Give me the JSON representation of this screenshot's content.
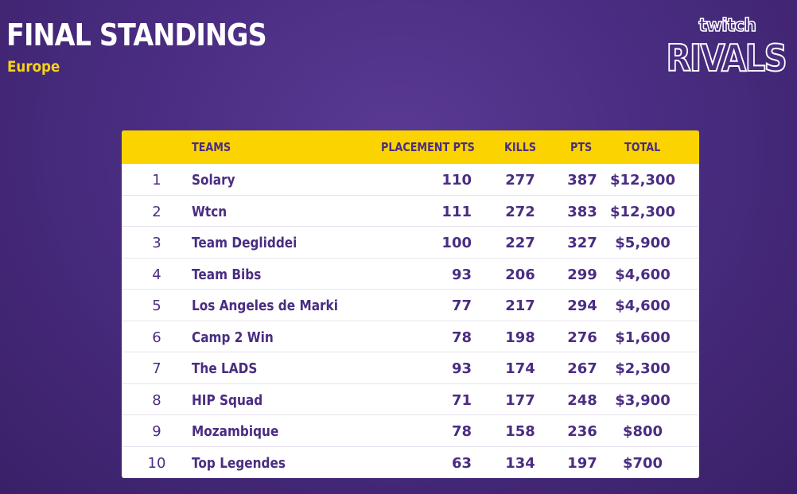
{
  "header": {
    "title": "FINAL STANDINGS",
    "subtitle": "Europe"
  },
  "logo": {
    "top": "twitch",
    "bottom": "RIVALS"
  },
  "table": {
    "columns": [
      "",
      "TEAMS",
      "PLACEMENT PTS",
      "KILLS",
      "PTS",
      "TOTAL"
    ],
    "rows": [
      {
        "rank": "1",
        "team": "Solary",
        "placement": "110",
        "kills": "277",
        "pts": "387",
        "total": "$12,300"
      },
      {
        "rank": "2",
        "team": "Wtcn",
        "placement": "111",
        "kills": "272",
        "pts": "383",
        "total": "$12,300"
      },
      {
        "rank": "3",
        "team": "Team Degliddei",
        "placement": "100",
        "kills": "227",
        "pts": "327",
        "total": "$5,900"
      },
      {
        "rank": "4",
        "team": "Team Bibs",
        "placement": "93",
        "kills": "206",
        "pts": "299",
        "total": "$4,600"
      },
      {
        "rank": "5",
        "team": "Los Angeles de Marki",
        "placement": "77",
        "kills": "217",
        "pts": "294",
        "total": "$4,600"
      },
      {
        "rank": "6",
        "team": "Camp 2 Win",
        "placement": "78",
        "kills": "198",
        "pts": "276",
        "total": "$1,600"
      },
      {
        "rank": "7",
        "team": "The LADS",
        "placement": "93",
        "kills": "174",
        "pts": "267",
        "total": "$2,300"
      },
      {
        "rank": "8",
        "team": "HIP Squad",
        "placement": "71",
        "kills": "177",
        "pts": "248",
        "total": "$3,900"
      },
      {
        "rank": "9",
        "team": "Mozambique",
        "placement": "78",
        "kills": "158",
        "pts": "236",
        "total": "$800"
      },
      {
        "rank": "10",
        "team": "Top Legendes",
        "placement": "63",
        "kills": "134",
        "pts": "197",
        "total": "$700"
      }
    ]
  },
  "colors": {
    "background": "#4a2d82",
    "accent_yellow": "#fbd400",
    "text_purple": "#4a2d82"
  }
}
